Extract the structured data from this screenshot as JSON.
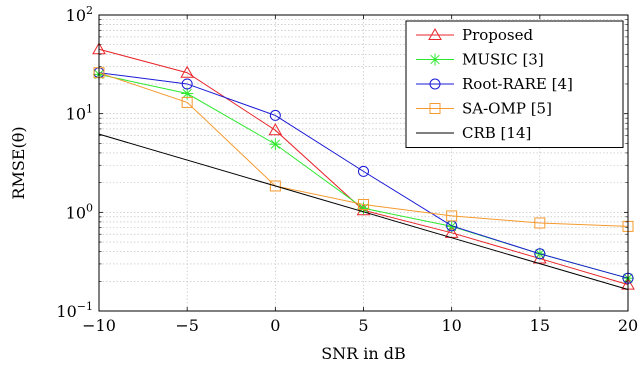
{
  "chart_data": {
    "type": "line",
    "xlabel": "SNR in dB",
    "ylabel": "RMSE(θ)",
    "y_scale": "log",
    "xlim": [
      -10,
      20
    ],
    "ylim": [
      0.1,
      100
    ],
    "grid": true,
    "legend_position": "top-right",
    "x_ticks": [
      -10,
      -5,
      0,
      5,
      10,
      15,
      20
    ],
    "x_tick_labels": [
      "−10",
      "−5",
      "0",
      "5",
      "10",
      "15",
      "20"
    ],
    "y_ticks": [
      0.1,
      1,
      10,
      100
    ],
    "y_tick_labels": [
      {
        "base": "10",
        "exp": "−1"
      },
      {
        "base": "10",
        "exp": "0"
      },
      {
        "base": "10",
        "exp": "1"
      },
      {
        "base": "10",
        "exp": "2"
      }
    ],
    "series": [
      {
        "name": "Proposed",
        "color": "#e8262b",
        "marker": "triangle",
        "x": [
          -10,
          -5,
          0,
          5,
          10,
          15,
          20
        ],
        "y": [
          45,
          26,
          6.8,
          1.05,
          0.62,
          0.34,
          0.185
        ]
      },
      {
        "name": "MUSIC [3]",
        "color": "#2ee82e",
        "marker": "star",
        "x": [
          -10,
          -5,
          0,
          5,
          10,
          15,
          20
        ],
        "y": [
          25,
          16,
          4.9,
          1.1,
          0.72,
          0.38,
          0.215
        ]
      },
      {
        "name": "Root-RARE [4]",
        "color": "#1a1ad6",
        "marker": "circle",
        "x": [
          -10,
          -5,
          0,
          5,
          10,
          15,
          20
        ],
        "y": [
          26,
          20,
          9.6,
          2.6,
          0.73,
          0.38,
          0.215
        ]
      },
      {
        "name": "SA-OMP [5]",
        "color": "#f59a2e",
        "marker": "square",
        "x": [
          -10,
          -5,
          0,
          5,
          10,
          15,
          20
        ],
        "y": [
          26,
          13,
          1.85,
          1.2,
          0.92,
          0.78,
          0.72
        ]
      },
      {
        "name": "CRB [14]",
        "color": "#000000",
        "marker": "none",
        "x": [
          -10,
          20
        ],
        "y": [
          6.2,
          0.165
        ]
      }
    ]
  }
}
